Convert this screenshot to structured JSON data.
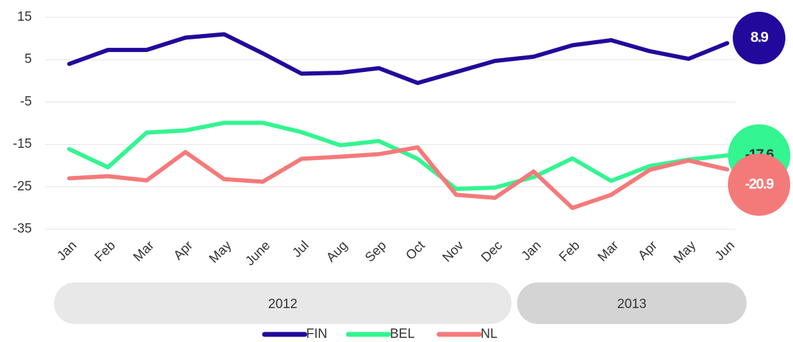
{
  "chart_data": {
    "type": "line",
    "categories": [
      "Jan",
      "Feb",
      "Mar",
      "Apr",
      "May",
      "June",
      "Jul",
      "Aug",
      "Sep",
      "Oct",
      "Nov",
      "Dec",
      "Jan",
      "Feb",
      "Mar",
      "Apr",
      "May",
      "Jun"
    ],
    "groups": [
      {
        "label": "2012",
        "count": 12
      },
      {
        "label": "2013",
        "count": 6
      }
    ],
    "series": [
      {
        "name": "FIN",
        "color": "#22099b",
        "values": [
          4.0,
          7.3,
          7.3,
          10.2,
          11.0,
          6.5,
          1.7,
          1.9,
          3.0,
          -0.5,
          2.1,
          4.7,
          5.7,
          8.4,
          9.6,
          7.0,
          5.2,
          8.9
        ],
        "value_labels": [
          null,
          null,
          null,
          null,
          null,
          null,
          null,
          null,
          null,
          null,
          null,
          null,
          null,
          null,
          null,
          null,
          null,
          "8.9"
        ]
      },
      {
        "name": "BEL",
        "color": "#33f591",
        "values": [
          -16.1,
          -20.4,
          -12.2,
          -11.7,
          -9.9,
          -9.9,
          -12.1,
          -15.2,
          -14.2,
          -18.4,
          -25.5,
          -25.2,
          -22.7,
          -18.3,
          -23.6,
          -20.1,
          -18.6,
          -17.6
        ],
        "value_labels": [
          null,
          null,
          null,
          null,
          null,
          null,
          null,
          null,
          null,
          null,
          null,
          null,
          null,
          null,
          null,
          null,
          null,
          "-17.6"
        ]
      },
      {
        "name": "NL",
        "color": "#f47a7a",
        "values": [
          -23.0,
          -22.5,
          -23.5,
          -16.8,
          -23.2,
          -23.8,
          -18.4,
          -17.9,
          -17.3,
          -15.7,
          -26.9,
          -27.6,
          -21.4,
          -30.0,
          -26.9,
          -21.0,
          -18.8,
          -20.9
        ],
        "value_labels": [
          null,
          null,
          null,
          null,
          null,
          null,
          null,
          null,
          null,
          null,
          null,
          null,
          null,
          null,
          null,
          null,
          null,
          "-20.9"
        ]
      }
    ],
    "ylim": [
      -35,
      15
    ],
    "yticks": [
      15,
      5,
      -5,
      -15,
      -25,
      -35
    ],
    "grid": true,
    "legend": "bottom"
  }
}
